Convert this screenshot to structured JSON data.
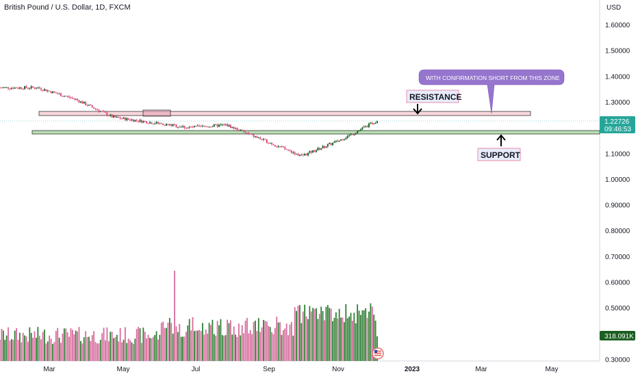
{
  "title": "British Pound / U.S. Dollar, 1D, FXCM",
  "currency": "USD",
  "y_ticks": [
    "1.60000",
    "1.50000",
    "1.40000",
    "1.30000",
    "1.10000",
    "1.00000",
    "0.90000",
    "0.80000",
    "0.70000",
    "0.60000",
    "0.50000",
    "0.30000"
  ],
  "y_tick_values": [
    1.6,
    1.5,
    1.4,
    1.3,
    1.1,
    1.0,
    0.9,
    0.8,
    0.7,
    0.6,
    0.5,
    0.3
  ],
  "x_ticks": [
    "Mar",
    "May",
    "Jul",
    "Sep",
    "Nov",
    "2023",
    "Mar",
    "May"
  ],
  "last_price": "1.22726",
  "countdown": "09:46:53",
  "volume_label": "318.091K",
  "annotations": {
    "resistance": "RESISTANCE",
    "support": "SUPPORT",
    "callout": "WITH CONFIRMATION SHORT FROM THIS ZONE"
  },
  "colors": {
    "up": "#26a69a",
    "up_candle": "#1b5e20",
    "down": "#e0457b",
    "vol_up": "#2e7d32",
    "vol_down": "#d66a9b",
    "resistance_zone": "#f8d7dc",
    "support_zone": "#b9dfb3",
    "callout": "#9575cd",
    "price_badge": "#26a69a",
    "volume_badge": "#1b5e20"
  },
  "chart_data": {
    "type": "candlestick",
    "title": "British Pound / U.S. Dollar, 1D, FXCM",
    "ylabel": "USD",
    "ylim": [
      0.3,
      1.65
    ],
    "zones": [
      {
        "name": "RESISTANCE",
        "from": 1.261,
        "to": 1.274
      },
      {
        "name": "SUPPORT",
        "from": 1.173,
        "to": 1.186
      }
    ],
    "close_path": [
      {
        "month": "Feb-2022",
        "value": 1.355
      },
      {
        "month": "Mar-2022",
        "value": 1.355
      },
      {
        "month": "Apr-2022",
        "value": 1.31
      },
      {
        "month": "May-2022",
        "value": 1.24
      },
      {
        "month": "Jun-2022",
        "value": 1.22
      },
      {
        "month": "Jul-2022",
        "value": 1.2
      },
      {
        "month": "Aug-2022",
        "value": 1.21
      },
      {
        "month": "Sep-2022",
        "value": 1.15
      },
      {
        "month": "Oct-2022",
        "value": 1.09
      },
      {
        "month": "Nov-2022",
        "value": 1.15
      },
      {
        "month": "Dec-2022",
        "value": 1.227
      }
    ],
    "last_close": 1.22726,
    "last_volume": "318.091K"
  }
}
